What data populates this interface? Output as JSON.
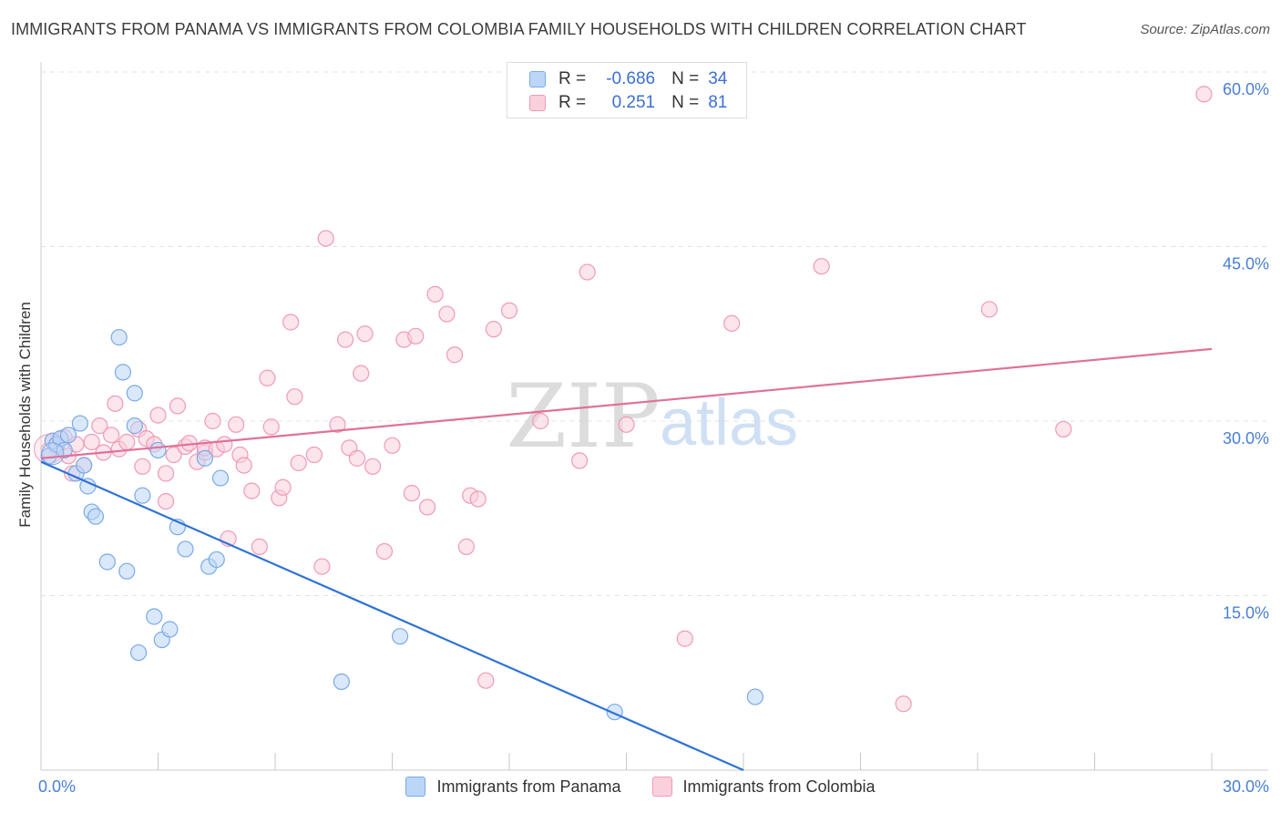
{
  "header": {
    "title": "IMMIGRANTS FROM PANAMA VS IMMIGRANTS FROM COLOMBIA FAMILY HOUSEHOLDS WITH CHILDREN CORRELATION CHART",
    "source": "Source: ZipAtlas.com"
  },
  "watermark": {
    "zip": "ZIP",
    "atlas": "atlas"
  },
  "stats": {
    "panama": {
      "r_label": "R =",
      "r_value": "-0.686",
      "n_label": "N =",
      "n_value": "34"
    },
    "colombia": {
      "r_label": "R =",
      "r_value": "0.251",
      "n_label": "N =",
      "n_value": "81"
    }
  },
  "legend": {
    "panama": "Immigrants from Panama",
    "colombia": "Immigrants from Colombia"
  },
  "colors": {
    "panama_fill": "#bcd6f7",
    "panama_stroke": "#7aaae8",
    "panama_line": "#2f72d6",
    "colombia_fill": "#fbd0dd",
    "colombia_stroke": "#f09ab6",
    "colombia_line": "#e0719a",
    "tick_label": "#4a7fd4",
    "grid": "#e3e3e3"
  },
  "chart_data": {
    "type": "scatter",
    "title": "IMMIGRANTS FROM PANAMA VS IMMIGRANTS FROM COLOMBIA FAMILY HOUSEHOLDS WITH CHILDREN CORRELATION CHART",
    "xlabel": "",
    "ylabel": "Family Households with Children",
    "xlim": [
      0,
      30
    ],
    "ylim": [
      0,
      60
    ],
    "x_tick_labels": [
      {
        "value": 0,
        "label": "0.0%"
      },
      {
        "value": 30,
        "label": "30.0%"
      }
    ],
    "y_tick_labels": [
      {
        "value": 15,
        "label": "15.0%"
      },
      {
        "value": 30,
        "label": "30.0%"
      },
      {
        "value": 45,
        "label": "45.0%"
      },
      {
        "value": 60,
        "label": "60.0%"
      }
    ],
    "series": [
      {
        "name": "Immigrants from Panama",
        "trend": {
          "x": [
            0.0,
            18.0
          ],
          "y": [
            26.5,
            0.0
          ]
        },
        "points": [
          [
            0.2,
            27.0
          ],
          [
            0.3,
            28.3
          ],
          [
            0.4,
            28.0
          ],
          [
            0.5,
            28.5
          ],
          [
            0.6,
            27.5
          ],
          [
            0.7,
            28.8
          ],
          [
            0.9,
            25.5
          ],
          [
            1.0,
            29.8
          ],
          [
            1.1,
            26.2
          ],
          [
            1.2,
            24.4
          ],
          [
            1.3,
            22.2
          ],
          [
            1.4,
            21.8
          ],
          [
            1.7,
            17.9
          ],
          [
            2.0,
            37.2
          ],
          [
            2.1,
            34.2
          ],
          [
            2.2,
            17.1
          ],
          [
            2.4,
            32.4
          ],
          [
            2.4,
            29.6
          ],
          [
            2.6,
            23.6
          ],
          [
            2.5,
            10.1
          ],
          [
            2.9,
            13.2
          ],
          [
            3.0,
            27.5
          ],
          [
            3.1,
            11.2
          ],
          [
            3.3,
            12.1
          ],
          [
            3.5,
            20.9
          ],
          [
            3.7,
            19.0
          ],
          [
            4.2,
            26.8
          ],
          [
            4.3,
            17.5
          ],
          [
            4.5,
            18.1
          ],
          [
            4.6,
            25.1
          ],
          [
            7.7,
            7.6
          ],
          [
            9.2,
            11.5
          ],
          [
            14.7,
            5.0
          ],
          [
            18.3,
            6.3
          ]
        ]
      },
      {
        "name": "Immigrants from Colombia",
        "trend": {
          "x": [
            0.0,
            30.0
          ],
          "y": [
            26.8,
            36.2
          ]
        },
        "points": [
          [
            0.2,
            27.5
          ],
          [
            0.3,
            28.3
          ],
          [
            0.4,
            27.8
          ],
          [
            0.6,
            28.6
          ],
          [
            0.7,
            27.0
          ],
          [
            0.8,
            25.5
          ],
          [
            0.9,
            28.0
          ],
          [
            1.1,
            26.2
          ],
          [
            1.3,
            28.2
          ],
          [
            1.5,
            29.6
          ],
          [
            1.6,
            27.3
          ],
          [
            1.8,
            28.8
          ],
          [
            1.9,
            31.5
          ],
          [
            2.0,
            27.6
          ],
          [
            2.2,
            28.2
          ],
          [
            2.5,
            29.3
          ],
          [
            2.6,
            26.1
          ],
          [
            2.7,
            28.5
          ],
          [
            2.9,
            28.0
          ],
          [
            3.0,
            30.5
          ],
          [
            3.2,
            23.1
          ],
          [
            3.2,
            25.5
          ],
          [
            3.4,
            27.1
          ],
          [
            3.5,
            31.3
          ],
          [
            3.7,
            27.8
          ],
          [
            3.8,
            28.1
          ],
          [
            4.0,
            26.5
          ],
          [
            4.2,
            27.3
          ],
          [
            4.2,
            27.7
          ],
          [
            4.4,
            30.0
          ],
          [
            4.5,
            27.6
          ],
          [
            4.7,
            28.0
          ],
          [
            4.8,
            19.9
          ],
          [
            5.0,
            29.7
          ],
          [
            5.1,
            27.1
          ],
          [
            5.2,
            26.2
          ],
          [
            5.4,
            24.0
          ],
          [
            5.6,
            19.2
          ],
          [
            5.8,
            33.7
          ],
          [
            5.9,
            29.5
          ],
          [
            6.1,
            23.4
          ],
          [
            6.2,
            24.3
          ],
          [
            6.4,
            38.5
          ],
          [
            6.5,
            32.1
          ],
          [
            6.6,
            26.4
          ],
          [
            7.0,
            27.1
          ],
          [
            7.2,
            17.5
          ],
          [
            7.3,
            45.7
          ],
          [
            7.6,
            29.7
          ],
          [
            7.8,
            37.0
          ],
          [
            7.9,
            27.7
          ],
          [
            8.1,
            26.8
          ],
          [
            8.2,
            34.1
          ],
          [
            8.3,
            37.5
          ],
          [
            8.5,
            26.1
          ],
          [
            8.8,
            18.8
          ],
          [
            9.0,
            27.9
          ],
          [
            9.3,
            37.0
          ],
          [
            9.5,
            23.8
          ],
          [
            9.6,
            37.3
          ],
          [
            9.9,
            22.6
          ],
          [
            10.1,
            40.9
          ],
          [
            10.4,
            39.2
          ],
          [
            10.6,
            35.7
          ],
          [
            10.9,
            19.2
          ],
          [
            11.0,
            23.6
          ],
          [
            11.2,
            23.3
          ],
          [
            11.4,
            7.7
          ],
          [
            11.6,
            37.9
          ],
          [
            12.0,
            39.5
          ],
          [
            12.8,
            30.0
          ],
          [
            13.8,
            26.6
          ],
          [
            14.0,
            42.8
          ],
          [
            15.0,
            29.7
          ],
          [
            16.5,
            11.3
          ],
          [
            17.7,
            38.4
          ],
          [
            20.0,
            43.3
          ],
          [
            22.1,
            5.7
          ],
          [
            24.3,
            39.6
          ],
          [
            26.2,
            29.3
          ],
          [
            29.8,
            58.1
          ]
        ]
      }
    ]
  }
}
